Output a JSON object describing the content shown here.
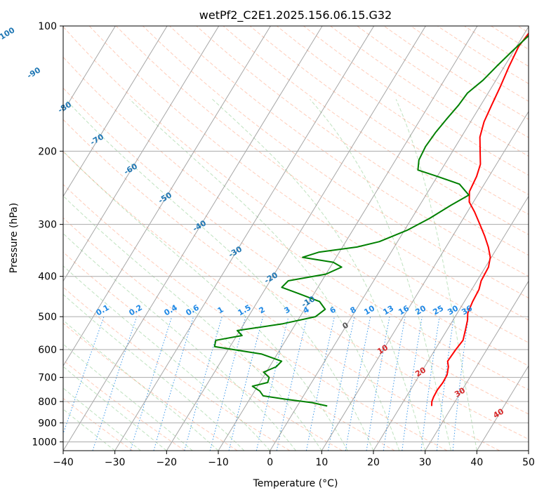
{
  "chart_data": {
    "type": "line",
    "diagram": "skew-T log-P",
    "title": "wetPf2_C2E1.2025.156.06.15.G32",
    "xlabel": "Temperature (°C)",
    "ylabel": "Pressure (hPa)",
    "xlim": [
      -40,
      50
    ],
    "ylim_hPa": [
      1050,
      100
    ],
    "y_scale": "log",
    "grid": true,
    "x_ticks": [
      -40,
      -30,
      -20,
      -10,
      0,
      10,
      20,
      30,
      40,
      50
    ],
    "y_ticks": [
      100,
      200,
      300,
      400,
      500,
      600,
      700,
      800,
      900,
      1000
    ],
    "isotherm_labels": [
      "-100",
      "-90",
      "-80",
      "-70",
      "-60",
      "-50",
      "-40",
      "-30",
      "-20",
      "-10",
      "0",
      "10",
      "20",
      "30",
      "40"
    ],
    "mixing_ratio_labels": [
      "0.1",
      "0.2",
      "0.4",
      "0.6",
      "1",
      "1.5",
      "2",
      "3",
      "4",
      "6",
      "8",
      "10",
      "13",
      "16",
      "20",
      "25",
      "30",
      "36"
    ],
    "series": [
      {
        "color": "#ff0000",
        "points": [
          {
            "p": 820,
            "x": 26.0
          },
          {
            "p": 800,
            "x": 25.5
          },
          {
            "p": 780,
            "x": 25.3
          },
          {
            "p": 750,
            "x": 25.2
          },
          {
            "p": 720,
            "x": 25.4
          },
          {
            "p": 690,
            "x": 25.3
          },
          {
            "p": 660,
            "x": 24.6
          },
          {
            "p": 640,
            "x": 23.8
          },
          {
            "p": 600,
            "x": 24.0
          },
          {
            "p": 570,
            "x": 24.3
          },
          {
            "p": 540,
            "x": 23.6
          },
          {
            "p": 510,
            "x": 22.8
          },
          {
            "p": 490,
            "x": 22.0
          },
          {
            "p": 460,
            "x": 21.6
          },
          {
            "p": 430,
            "x": 21.4
          },
          {
            "p": 410,
            "x": 20.8
          },
          {
            "p": 380,
            "x": 20.6
          },
          {
            "p": 360,
            "x": 19.8
          },
          {
            "p": 340,
            "x": 18.2
          },
          {
            "p": 320,
            "x": 16.2
          },
          {
            "p": 300,
            "x": 13.9
          },
          {
            "p": 280,
            "x": 11.4
          },
          {
            "p": 265,
            "x": 9.2
          },
          {
            "p": 250,
            "x": 8.0
          },
          {
            "p": 230,
            "x": 7.6
          },
          {
            "p": 215,
            "x": 6.9
          },
          {
            "p": 200,
            "x": 5.3
          },
          {
            "p": 185,
            "x": 3.6
          },
          {
            "p": 170,
            "x": 2.6
          },
          {
            "p": 155,
            "x": 2.1
          },
          {
            "p": 140,
            "x": 1.6
          },
          {
            "p": 125,
            "x": 0.9
          },
          {
            "p": 112,
            "x": 0.4
          },
          {
            "p": 100,
            "x": 1.0
          }
        ]
      },
      {
        "color": "#008000",
        "points": [
          {
            "p": 820,
            "x": 5.8
          },
          {
            "p": 805,
            "x": 2.5
          },
          {
            "p": 790,
            "x": -3.0
          },
          {
            "p": 775,
            "x": -7.8
          },
          {
            "p": 755,
            "x": -9.0
          },
          {
            "p": 735,
            "x": -11.0
          },
          {
            "p": 720,
            "x": -8.5
          },
          {
            "p": 700,
            "x": -8.8
          },
          {
            "p": 680,
            "x": -10.5
          },
          {
            "p": 660,
            "x": -8.7
          },
          {
            "p": 640,
            "x": -8.3
          },
          {
            "p": 615,
            "x": -13.0
          },
          {
            "p": 590,
            "x": -23.0
          },
          {
            "p": 570,
            "x": -23.5
          },
          {
            "p": 555,
            "x": -19.0
          },
          {
            "p": 540,
            "x": -20.5
          },
          {
            "p": 520,
            "x": -12.5
          },
          {
            "p": 500,
            "x": -7.0
          },
          {
            "p": 480,
            "x": -6.0
          },
          {
            "p": 460,
            "x": -8.0
          },
          {
            "p": 440,
            "x": -13.0
          },
          {
            "p": 425,
            "x": -17.0
          },
          {
            "p": 410,
            "x": -16.5
          },
          {
            "p": 395,
            "x": -10.0
          },
          {
            "p": 380,
            "x": -7.8
          },
          {
            "p": 370,
            "x": -10.0
          },
          {
            "p": 360,
            "x": -16.5
          },
          {
            "p": 350,
            "x": -14.0
          },
          {
            "p": 340,
            "x": -7.2
          },
          {
            "p": 330,
            "x": -3.5
          },
          {
            "p": 310,
            "x": 0.5
          },
          {
            "p": 290,
            "x": 3.5
          },
          {
            "p": 270,
            "x": 6.0
          },
          {
            "p": 255,
            "x": 8.3
          },
          {
            "p": 240,
            "x": 5.2
          },
          {
            "p": 230,
            "x": 0.0
          },
          {
            "p": 222,
            "x": -4.5
          },
          {
            "p": 210,
            "x": -5.5
          },
          {
            "p": 195,
            "x": -5.8
          },
          {
            "p": 180,
            "x": -5.5
          },
          {
            "p": 168,
            "x": -5.0
          },
          {
            "p": 155,
            "x": -4.3
          },
          {
            "p": 145,
            "x": -4.0
          },
          {
            "p": 135,
            "x": -2.5
          },
          {
            "p": 125,
            "x": -1.5
          },
          {
            "p": 115,
            "x": -0.3
          },
          {
            "p": 106,
            "x": 1.0
          },
          {
            "p": 100,
            "x": 1.5
          }
        ]
      }
    ]
  }
}
